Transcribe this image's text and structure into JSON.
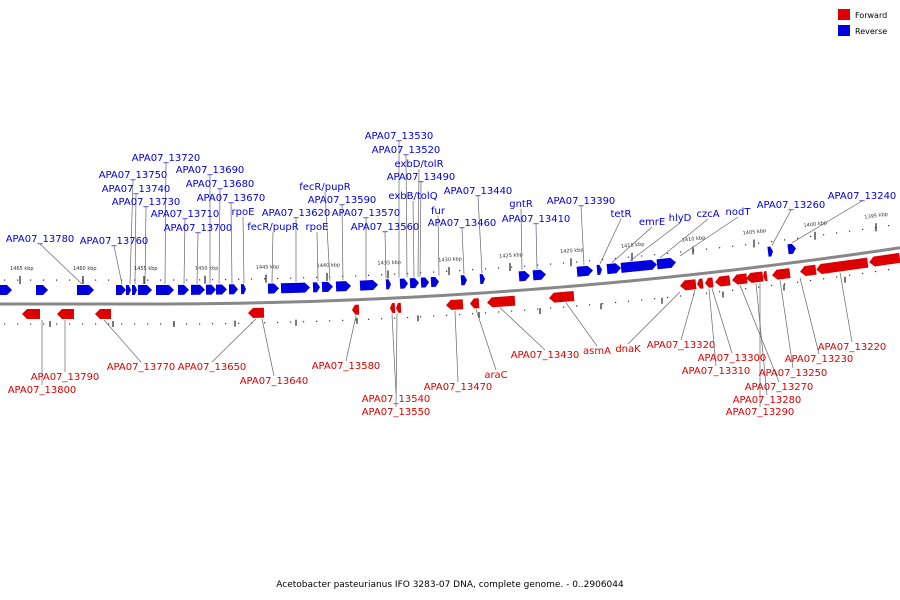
{
  "legend": {
    "forward_label": "Forward",
    "reverse_label": "Reverse",
    "forward_color": "#dd0000",
    "reverse_color": "#0000dd"
  },
  "caption": "Acetobacter pasteurianus IFO 3283-07 DNA, complete genome. - 0..2906044",
  "colors": {
    "backbone": "#888888",
    "leader": "#666666"
  },
  "scale_labels": [
    "1465 kbp",
    "1460 kbp",
    "1455 kbp",
    "1450 kbp",
    "1445 kbp",
    "1440 kbp",
    "1435 kbp",
    "1430 kbp",
    "1425 kbp",
    "1420 kbp",
    "1415 kbp",
    "1410 kbp",
    "1405 kbp",
    "1400 kbp",
    "1395 kbp"
  ],
  "reverse_genes": [
    "APA07_13780",
    "APA07_13760",
    "APA07_13750",
    "APA07_13740",
    "APA07_13730",
    "APA07_13720",
    "APA07_13710",
    "APA07_13700",
    "APA07_13690",
    "APA07_13680",
    "APA07_13670",
    "rpoE",
    "fecR/pupR",
    "APA07_13620",
    "fecR/pupR",
    "rpoE",
    "APA07_13590",
    "APA07_13570",
    "APA07_13560",
    "APA07_13530",
    "APA07_13520",
    "exbD/tolR",
    "APA07_13490",
    "exbB/tolQ",
    "fur",
    "APA07_13460",
    "APA07_13440",
    "gntR",
    "APA07_13410",
    "APA07_13390",
    "tetR",
    "emrE",
    "hlyD",
    "czcA",
    "nodT",
    "APA07_13260",
    "APA07_13240"
  ],
  "forward_genes": [
    "APA07_13790",
    "APA07_13800",
    "APA07_13770",
    "APA07_13650",
    "APA07_13640",
    "APA07_13580",
    "APA07_13540",
    "APA07_13550",
    "APA07_13470",
    "araC",
    "APA07_13430",
    "asmA",
    "dnaK",
    "APA07_13320",
    "APA07_13300",
    "APA07_13310",
    "APA07_13270",
    "APA07_13280",
    "APA07_13290",
    "APA07_13250",
    "APA07_13230",
    "APA07_13220"
  ]
}
